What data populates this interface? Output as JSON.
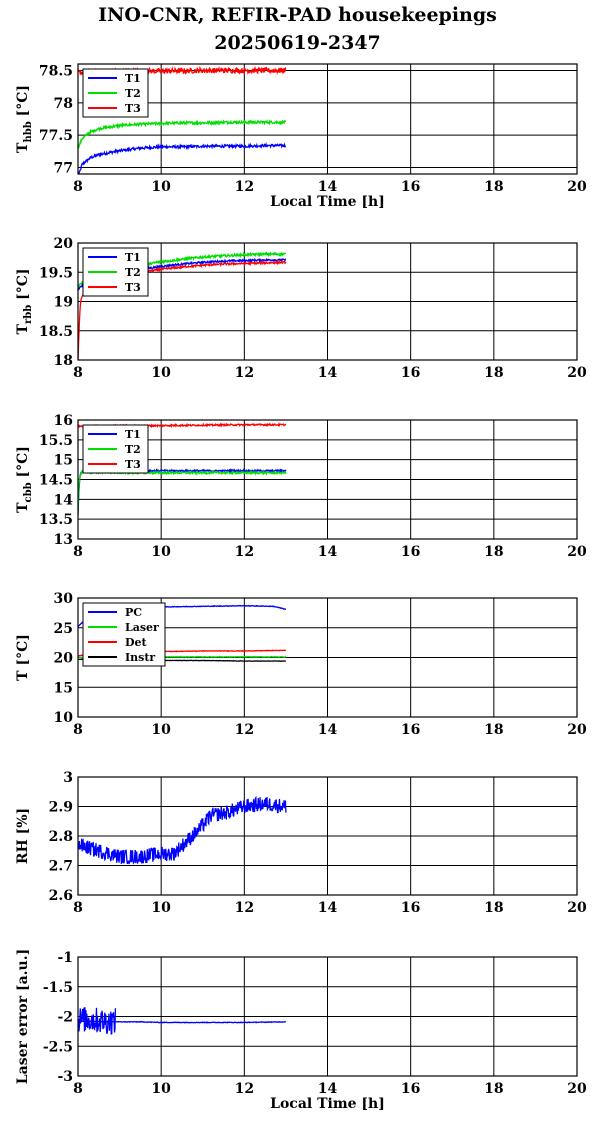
{
  "title_line1": "INO-CNR, REFIR-PAD housekeepings",
  "title_line2": "20250619-2347",
  "chart_data": [
    {
      "type": "line",
      "ylabel": "T_hbb [°C]",
      "ylabel_main": "T",
      "ylabel_sub": "hbb",
      "ylabel_tail": " [°C]",
      "xlabel": "Local Time [h]",
      "xlim": [
        8,
        20
      ],
      "ylim": [
        76.9,
        78.6
      ],
      "xticks": [
        8,
        10,
        12,
        14,
        16,
        18,
        20
      ],
      "yticks": [
        77,
        77.5,
        78,
        78.5
      ],
      "ytick_labels": [
        "77",
        "77.5",
        "78",
        "78.5"
      ],
      "grid": true,
      "legend_position": "top-left",
      "series": [
        {
          "name": "T1",
          "color": "#0000ff",
          "noise": 0.02,
          "x": [
            8,
            8.1,
            8.3,
            8.5,
            9,
            9.5,
            10,
            10.5,
            11,
            11.5,
            12,
            12.5,
            13
          ],
          "y": [
            76.85,
            77.05,
            77.15,
            77.2,
            77.26,
            77.3,
            77.32,
            77.32,
            77.33,
            77.33,
            77.33,
            77.34,
            77.34
          ]
        },
        {
          "name": "T2",
          "color": "#00dd00",
          "noise": 0.02,
          "x": [
            8,
            8.1,
            8.3,
            8.5,
            9,
            9.5,
            10,
            10.5,
            11,
            11.5,
            12,
            12.5,
            13
          ],
          "y": [
            77.3,
            77.45,
            77.55,
            77.6,
            77.65,
            77.67,
            77.68,
            77.69,
            77.69,
            77.7,
            77.7,
            77.7,
            77.7
          ]
        },
        {
          "name": "T3",
          "color": "#ff0000",
          "noise": 0.04,
          "x": [
            8,
            8.5,
            9,
            10,
            11,
            12,
            13
          ],
          "y": [
            78.47,
            78.48,
            78.49,
            78.49,
            78.5,
            78.5,
            78.5
          ]
        }
      ]
    },
    {
      "type": "line",
      "ylabel": "T_rbb [°C]",
      "ylabel_main": "T",
      "ylabel_sub": "rbb",
      "ylabel_tail": " [°C]",
      "xlabel": "",
      "xlim": [
        8,
        20
      ],
      "ylim": [
        18,
        20
      ],
      "xticks": [
        8,
        10,
        12,
        14,
        16,
        18,
        20
      ],
      "yticks": [
        18,
        18.5,
        19,
        19.5,
        20
      ],
      "ytick_labels": [
        "18",
        "18.5",
        "19",
        "19.5",
        "20"
      ],
      "grid": true,
      "legend_position": "top-left",
      "series": [
        {
          "name": "T1",
          "color": "#0000ff",
          "noise": 0.015,
          "x": [
            8,
            8.05,
            8.2,
            8.5,
            9,
            9.5,
            10,
            10.5,
            11,
            11.5,
            12,
            12.5,
            13
          ],
          "y": [
            19.2,
            19.25,
            19.3,
            19.4,
            19.48,
            19.55,
            19.6,
            19.64,
            19.67,
            19.69,
            19.7,
            19.71,
            19.71
          ]
        },
        {
          "name": "T2",
          "color": "#00dd00",
          "noise": 0.02,
          "x": [
            8,
            8.05,
            8.2,
            8.5,
            9,
            9.5,
            10,
            10.5,
            11,
            11.5,
            12,
            12.5,
            13
          ],
          "y": [
            19.25,
            19.3,
            19.35,
            19.45,
            19.55,
            19.62,
            19.68,
            19.72,
            19.76,
            19.78,
            19.8,
            19.81,
            19.81
          ]
        },
        {
          "name": "T3",
          "color": "#ff0000",
          "noise": 0.015,
          "x": [
            8,
            8.03,
            8.06,
            8.1,
            8.2,
            8.5,
            9,
            9.5,
            10,
            10.5,
            11,
            11.5,
            12,
            12.5,
            13
          ],
          "y": [
            18.0,
            18.6,
            19.0,
            19.1,
            19.22,
            19.35,
            19.43,
            19.5,
            19.55,
            19.59,
            19.62,
            19.64,
            19.65,
            19.66,
            19.67
          ]
        }
      ]
    },
    {
      "type": "line",
      "ylabel": "T_cbb [°C]",
      "ylabel_main": "T",
      "ylabel_sub": "cbb",
      "ylabel_tail": " [°C]",
      "xlabel": "",
      "xlim": [
        8,
        20
      ],
      "ylim": [
        13,
        16
      ],
      "xticks": [
        8,
        10,
        12,
        14,
        16,
        18,
        20
      ],
      "yticks": [
        13,
        13.5,
        14,
        14.5,
        15,
        15.5,
        16
      ],
      "ytick_labels": [
        "13",
        "13.5",
        "14",
        "14.5",
        "15",
        "15.5",
        "16"
      ],
      "grid": true,
      "legend_position": "top-left",
      "series": [
        {
          "name": "T1",
          "color": "#0000ff",
          "noise": 0.02,
          "x": [
            8,
            8.02,
            8.05,
            8.1,
            8.3,
            9,
            10,
            11,
            12,
            13
          ],
          "y": [
            13.6,
            14.2,
            14.6,
            14.72,
            14.72,
            14.72,
            14.72,
            14.72,
            14.72,
            14.72
          ]
        },
        {
          "name": "T2",
          "color": "#00dd00",
          "noise": 0.025,
          "x": [
            8,
            8.02,
            8.05,
            8.1,
            8.3,
            9,
            10,
            11,
            12,
            13
          ],
          "y": [
            13.7,
            14.3,
            14.6,
            14.7,
            14.68,
            14.67,
            14.67,
            14.67,
            14.67,
            14.67
          ]
        },
        {
          "name": "T3",
          "color": "#ff0000",
          "noise": 0.02,
          "x": [
            8,
            9,
            10,
            11,
            12,
            13
          ],
          "y": [
            15.84,
            15.85,
            15.86,
            15.87,
            15.88,
            15.88
          ]
        }
      ]
    },
    {
      "type": "line",
      "ylabel": "T [°C]",
      "ylabel_main": "T [°C]",
      "ylabel_sub": "",
      "ylabel_tail": "",
      "xlabel": "",
      "xlim": [
        8,
        20
      ],
      "ylim": [
        10,
        30
      ],
      "xticks": [
        8,
        10,
        12,
        14,
        16,
        18,
        20
      ],
      "yticks": [
        10,
        15,
        20,
        25,
        30
      ],
      "ytick_labels": [
        "10",
        "15",
        "20",
        "25",
        "30"
      ],
      "grid": true,
      "legend_position": "top-left",
      "series": [
        {
          "name": "PC",
          "color": "#0000ff",
          "noise": 0.05,
          "x": [
            8,
            8.2,
            8.5,
            9,
            9.5,
            10,
            11,
            12,
            12.7,
            13
          ],
          "y": [
            25.2,
            26.5,
            27.6,
            28.2,
            28.4,
            28.5,
            28.6,
            28.7,
            28.6,
            28.1
          ]
        },
        {
          "name": "Laser",
          "color": "#00dd00",
          "noise": 0.05,
          "x": [
            8,
            9,
            10,
            11,
            12,
            13
          ],
          "y": [
            20.0,
            20.0,
            20.1,
            20.1,
            20.1,
            20.1
          ]
        },
        {
          "name": "Det",
          "color": "#ff0000",
          "noise": 0.04,
          "x": [
            8,
            9,
            10,
            11,
            12,
            13
          ],
          "y": [
            20.3,
            20.8,
            21.0,
            21.1,
            21.1,
            21.2
          ]
        },
        {
          "name": "Instr",
          "color": "#000000",
          "noise": 0.03,
          "x": [
            8,
            9,
            10,
            11,
            12,
            13
          ],
          "y": [
            19.7,
            19.6,
            19.5,
            19.5,
            19.4,
            19.4
          ]
        }
      ]
    },
    {
      "type": "line",
      "ylabel": "RH [%]",
      "ylabel_main": "RH [%]",
      "ylabel_sub": "",
      "ylabel_tail": "",
      "xlabel": "",
      "xlim": [
        8,
        20
      ],
      "ylim": [
        2.6,
        3.0
      ],
      "xticks": [
        8,
        10,
        12,
        14,
        16,
        18,
        20
      ],
      "yticks": [
        2.6,
        2.7,
        2.8,
        2.9,
        3.0
      ],
      "ytick_labels": [
        "2.6",
        "2.7",
        "2.8",
        "2.9",
        "3"
      ],
      "grid": true,
      "legend_position": "none",
      "series": [
        {
          "name": "",
          "color": "#0000ff",
          "noise": 0.025,
          "x": [
            8,
            8.5,
            9,
            9.5,
            10,
            10.3,
            10.6,
            10.9,
            11.2,
            11.6,
            12,
            12.5,
            13
          ],
          "y": [
            2.77,
            2.75,
            2.73,
            2.73,
            2.74,
            2.74,
            2.78,
            2.82,
            2.87,
            2.88,
            2.9,
            2.91,
            2.9
          ]
        }
      ]
    },
    {
      "type": "line",
      "ylabel": "Laser error [a.u.]",
      "ylabel_main": "Laser error [a.u.]",
      "ylabel_sub": "",
      "ylabel_tail": "",
      "xlabel": "Local Time [h]",
      "xlim": [
        8,
        20
      ],
      "ylim": [
        -3,
        -1
      ],
      "xticks": [
        8,
        10,
        12,
        14,
        16,
        18,
        20
      ],
      "yticks": [
        -3,
        -2.5,
        -2,
        -1.5,
        -1
      ],
      "ytick_labels": [
        "-3",
        "-2.5",
        "-2",
        "-1.5",
        "-1"
      ],
      "grid": true,
      "legend_position": "none",
      "series": [
        {
          "name": "",
          "color": "#0000ff",
          "noise": 0.005,
          "x": [
            8,
            9,
            9.5,
            10,
            11,
            12,
            13
          ],
          "y": [
            -2.08,
            -2.09,
            -2.09,
            -2.1,
            -2.1,
            -2.1,
            -2.09
          ]
        },
        {
          "name": "",
          "color": "#0000ff",
          "noise": 0.22,
          "x": [
            8,
            8.3,
            8.6,
            8.9
          ],
          "y": [
            -2.05,
            -2.05,
            -2.08,
            -2.08
          ]
        }
      ]
    }
  ]
}
